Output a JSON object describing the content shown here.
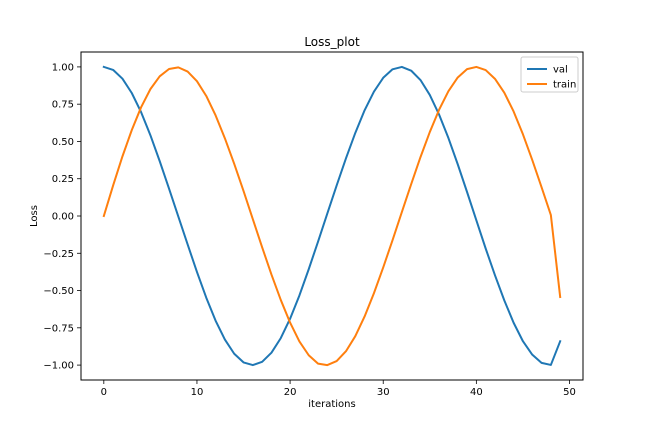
{
  "chart_data": {
    "type": "line",
    "title": "Loss_plot",
    "xlabel": "iterations",
    "ylabel": "Loss",
    "xlim": [
      -2.45,
      51.45
    ],
    "ylim": [
      -1.1,
      1.1
    ],
    "xticks": [
      0,
      10,
      20,
      30,
      40,
      50
    ],
    "yticks": [
      -1.0,
      -0.75,
      -0.5,
      -0.25,
      0.0,
      0.25,
      0.5,
      0.75,
      1.0
    ],
    "ytick_labels": [
      "−1.00",
      "−0.75",
      "−0.50",
      "−0.25",
      "0.00",
      "0.25",
      "0.50",
      "0.75",
      "1.00"
    ],
    "grid": false,
    "legend_position": "top-right",
    "x": [
      0,
      1,
      2,
      3,
      4,
      5,
      6,
      7,
      8,
      9,
      10,
      11,
      12,
      13,
      14,
      15,
      16,
      17,
      18,
      19,
      20,
      21,
      22,
      23,
      24,
      25,
      26,
      27,
      28,
      29,
      30,
      31,
      32,
      33,
      34,
      35,
      36,
      37,
      38,
      39,
      40,
      41,
      42,
      43,
      44,
      45,
      46,
      47,
      48,
      49
    ],
    "series": [
      {
        "name": "val",
        "color": "#1f77b4",
        "values": [
          1.0,
          0.98,
          0.921,
          0.825,
          0.697,
          0.542,
          0.368,
          0.184,
          -0.004,
          -0.191,
          -0.375,
          -0.548,
          -0.702,
          -0.829,
          -0.924,
          -0.982,
          -1.0,
          -0.978,
          -0.917,
          -0.819,
          -0.689,
          -0.533,
          -0.357,
          -0.172,
          0.017,
          0.205,
          0.387,
          0.557,
          0.709,
          0.834,
          0.927,
          0.984,
          1.0,
          0.975,
          0.912,
          0.812,
          0.68,
          0.523,
          0.347,
          0.161,
          -0.029,
          -0.218,
          -0.398,
          -0.566,
          -0.716,
          -0.84,
          -0.93,
          -0.985,
          -0.999,
          -0.84
        ]
      },
      {
        "name": "train",
        "color": "#ff7f0e",
        "values": [
          0.0,
          0.205,
          0.4,
          0.576,
          0.729,
          0.851,
          0.937,
          0.986,
          0.997,
          0.969,
          0.904,
          0.805,
          0.675,
          0.521,
          0.35,
          0.168,
          -0.021,
          -0.21,
          -0.393,
          -0.563,
          -0.715,
          -0.841,
          -0.934,
          -0.99,
          -1.0,
          -0.973,
          -0.907,
          -0.806,
          -0.674,
          -0.518,
          -0.345,
          -0.162,
          0.026,
          0.213,
          0.395,
          0.563,
          0.713,
          0.837,
          0.929,
          0.985,
          1.0,
          0.979,
          0.92,
          0.827,
          0.701,
          0.548,
          0.376,
          0.193,
          0.006,
          -0.543
        ]
      }
    ]
  }
}
